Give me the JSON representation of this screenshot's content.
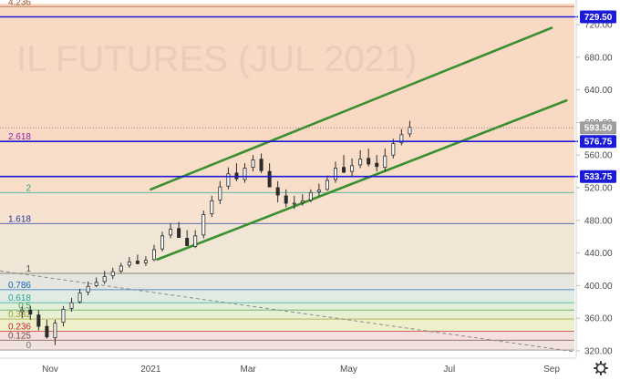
{
  "chart_data": {
    "type": "candlestick",
    "title": "IL FUTURES (JUL 2021)",
    "x_tick_labels": [
      "Nov",
      "2021",
      "Mar",
      "May",
      "Jul",
      "Sep"
    ],
    "y_tick_labels": [
      "720.00",
      "680.00",
      "640.00",
      "600.00",
      "560.00",
      "520.00",
      "480.00",
      "440.00",
      "400.00",
      "360.00",
      "320.00"
    ],
    "ylim": [
      316,
      742
    ],
    "fib_levels": [
      {
        "label": "4.236",
        "value": 742,
        "color": "#a0522d"
      },
      {
        "label": "2.618",
        "value": 577,
        "color": "#8e24aa"
      },
      {
        "label": "2",
        "value": 514,
        "color": "#26a69a"
      },
      {
        "label": "1.618",
        "value": 476,
        "color": "#1e3aa8"
      },
      {
        "label": "1",
        "value": 415,
        "color": "#555555"
      },
      {
        "label": "0.786",
        "value": 395,
        "color": "#1565c0"
      },
      {
        "label": "0.618",
        "value": 379,
        "color": "#26a69a"
      },
      {
        "label": "0.5",
        "value": 370,
        "color": "#43a047"
      },
      {
        "label": "0.382",
        "value": 359,
        "color": "#9e9d24"
      },
      {
        "label": "0.236",
        "value": 344,
        "color": "#c62828"
      },
      {
        "label": "0.125",
        "value": 333,
        "color": "#6d4c41"
      },
      {
        "label": "0",
        "value": 321,
        "color": "#757575"
      }
    ],
    "horizontal_levels": [
      {
        "label": "729.50",
        "value": 729.5
      },
      {
        "label": "576.75",
        "value": 576.75
      },
      {
        "label": "533.75",
        "value": 533.75
      }
    ],
    "last_price": {
      "label": "593.50",
      "value": 593.5
    },
    "channel": {
      "upper": [
        [
          "2021-01-01",
          518
        ],
        [
          "2021-09-01",
          716
        ]
      ],
      "lower": [
        [
          "2021-01-05",
          432
        ],
        [
          "2021-09-10",
          627
        ]
      ]
    },
    "series": [
      {
        "x": [
          "2020-10-15",
          "2020-10-20",
          "2020-10-25",
          "2020-10-30",
          "2020-11-04",
          "2020-11-09",
          "2020-11-14",
          "2020-11-19",
          "2020-11-24",
          "2020-11-29",
          "2020-12-04",
          "2020-12-09",
          "2020-12-14",
          "2020-12-19",
          "2020-12-24",
          "2020-12-29",
          "2021-01-03",
          "2021-01-08",
          "2021-01-13",
          "2021-01-18",
          "2021-01-23",
          "2021-01-28",
          "2021-02-02",
          "2021-02-07",
          "2021-02-12",
          "2021-02-17",
          "2021-02-22",
          "2021-02-27",
          "2021-03-04",
          "2021-03-09",
          "2021-03-14",
          "2021-03-19",
          "2021-03-24",
          "2021-03-29",
          "2021-04-03",
          "2021-04-08",
          "2021-04-13",
          "2021-04-18",
          "2021-04-23",
          "2021-04-28",
          "2021-05-03",
          "2021-05-08",
          "2021-05-13",
          "2021-05-18",
          "2021-05-23",
          "2021-05-28",
          "2021-06-02",
          "2021-06-07"
        ],
        "open": [
          368,
          370,
          364,
          350,
          336,
          355,
          372,
          380,
          392,
          400,
          405,
          412,
          418,
          425,
          430,
          428,
          432,
          445,
          462,
          470,
          458,
          448,
          462,
          488,
          505,
          522,
          538,
          530,
          545,
          555,
          540,
          520,
          510,
          500,
          502,
          505,
          515,
          518,
          530,
          545,
          540,
          548,
          556,
          550,
          545,
          560,
          575,
          586
        ],
        "high": [
          374,
          375,
          370,
          358,
          358,
          375,
          385,
          396,
          405,
          410,
          418,
          422,
          428,
          435,
          438,
          436,
          450,
          466,
          476,
          478,
          468,
          468,
          492,
          510,
          528,
          545,
          550,
          550,
          560,
          562,
          550,
          528,
          518,
          510,
          512,
          518,
          525,
          535,
          552,
          560,
          556,
          566,
          568,
          560,
          568,
          580,
          592,
          602
        ],
        "low": [
          360,
          358,
          345,
          335,
          327,
          350,
          368,
          378,
          388,
          398,
          402,
          408,
          415,
          422,
          426,
          424,
          430,
          442,
          458,
          462,
          452,
          446,
          458,
          484,
          500,
          518,
          528,
          526,
          540,
          538,
          522,
          502,
          496,
          494,
          498,
          502,
          510,
          516,
          526,
          538,
          534,
          544,
          546,
          540,
          540,
          556,
          572,
          582
        ],
        "close": [
          370,
          365,
          350,
          337,
          354,
          371,
          379,
          391,
          399,
          404,
          411,
          417,
          424,
          429,
          427,
          431,
          444,
          461,
          469,
          459,
          449,
          461,
          487,
          504,
          521,
          537,
          531,
          544,
          554,
          541,
          521,
          511,
          501,
          501,
          504,
          514,
          517,
          529,
          544,
          539,
          547,
          555,
          549,
          546,
          559,
          574,
          585,
          594
        ]
      }
    ]
  }
}
